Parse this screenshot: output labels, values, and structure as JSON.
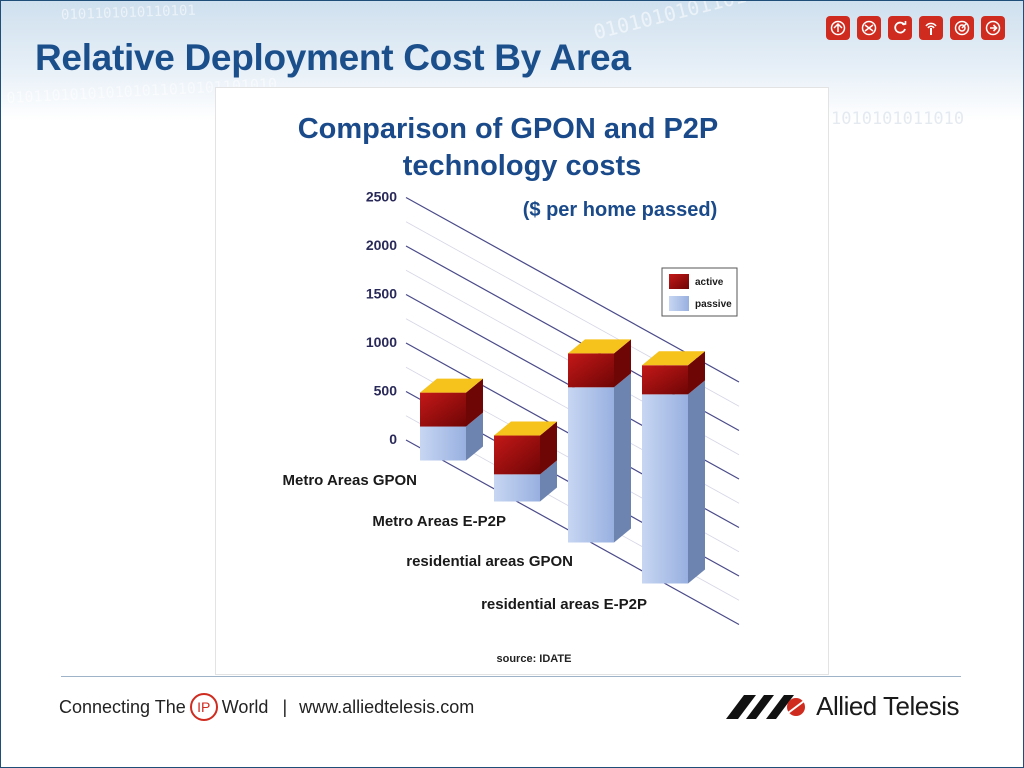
{
  "slide": {
    "title": "Relative Deployment Cost By Area",
    "binary_top": "01010101011010100101001010100101010101",
    "binary_left": "010110101010101011010101101010",
    "binary_right": "1010101011010",
    "binary_topleft": "0101101010110101"
  },
  "header_icons": [
    "directions-icon",
    "shuffle-icon",
    "refresh-icon",
    "antenna-icon",
    "target-icon",
    "forward-icon"
  ],
  "colors": {
    "title": "#1b4f8c",
    "accent_red": "#d02b1f",
    "active_front": "#a31212",
    "active_side": "#6e0606",
    "passive_front": "#a9c0e8",
    "passive_side": "#6e84b0",
    "bar_top": "#f6c21c",
    "chart_title": "#1a4a8a"
  },
  "chart_data": {
    "type": "bar",
    "stacked": true,
    "title": "Comparison of GPON and P2P technology costs",
    "title_lines": [
      "Comparison of GPON and P2P",
      "technology costs"
    ],
    "subtitle": "($ per home passed)",
    "categories": [
      "Metro Areas GPON",
      "Metro Areas E-P2P",
      "residential areas GPON",
      "residential areas E-P2P"
    ],
    "series": [
      {
        "name": "passive",
        "values": [
          350,
          280,
          1600,
          1950
        ]
      },
      {
        "name": "active",
        "values": [
          350,
          400,
          350,
          300
        ]
      }
    ],
    "ylim": [
      0,
      2500
    ],
    "yticks": [
      0,
      500,
      1000,
      1500,
      2000,
      2500
    ],
    "xlabel": "",
    "ylabel": "",
    "legend": "top-right",
    "grid": true,
    "source": "source: IDATE"
  },
  "footer": {
    "tagline_before": "Connecting The",
    "tagline_ip": "IP",
    "tagline_after": "World",
    "separator": "|",
    "url": "www.alliedtelesis.com",
    "brand": "Allied Telesis"
  }
}
